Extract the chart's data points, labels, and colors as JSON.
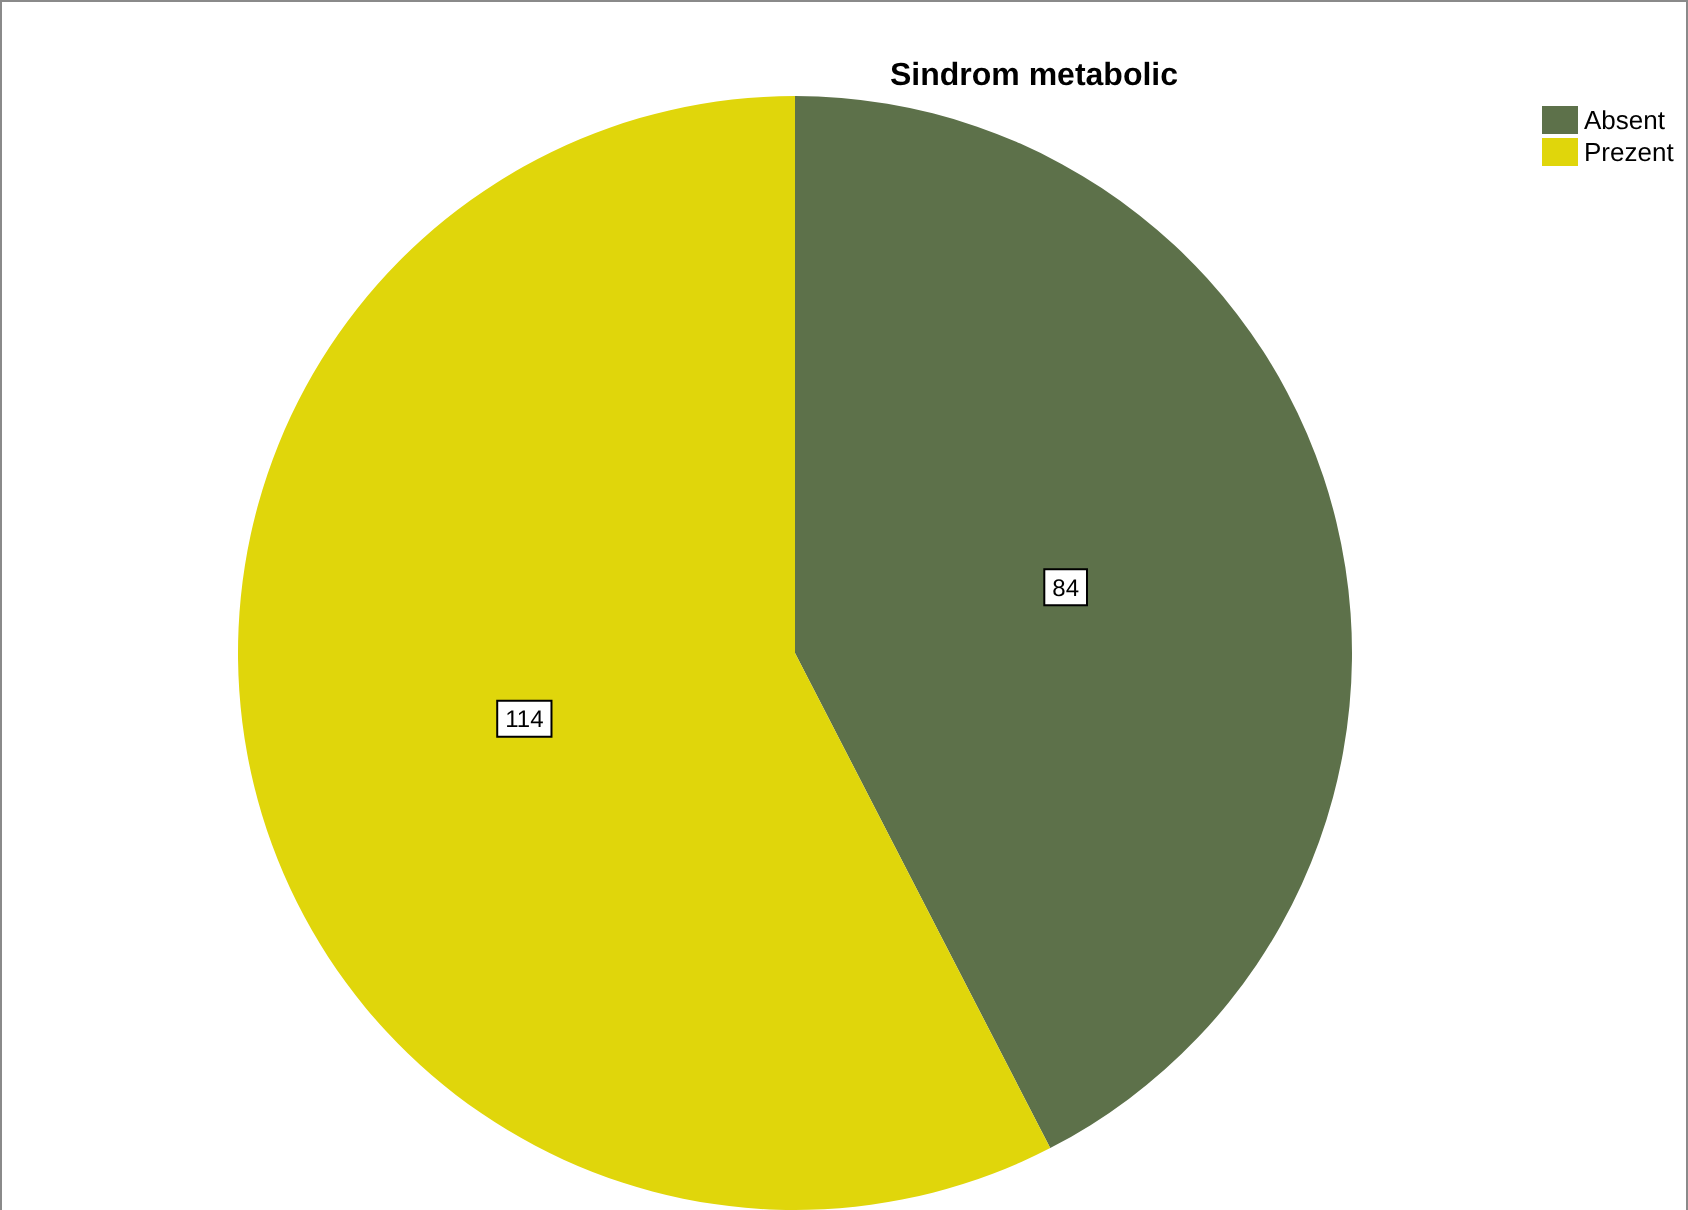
{
  "chart_data": {
    "type": "pie",
    "title": "Sindrom metabolic",
    "categories": [
      "Absent",
      "Prezent"
    ],
    "values": [
      84,
      114
    ],
    "colors": [
      "#5d714a",
      "#e0d60b"
    ],
    "data_labels": true,
    "legend": "top right"
  }
}
